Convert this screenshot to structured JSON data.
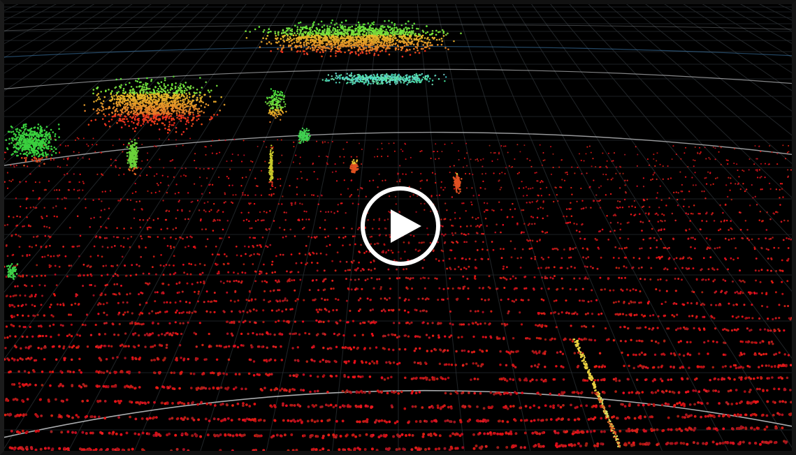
{
  "video": {
    "state": "paused",
    "content": "lidar-point-cloud"
  },
  "controls": {
    "play_icon": "play-circle-icon"
  },
  "colors": {
    "background": "#000000",
    "grid": "#2c3136",
    "range_ring": "#c8cacc",
    "ground": "#c8141a",
    "foliage_high": "#28d23c",
    "foliage_mid": "#d2d228",
    "foliage_low": "#e63c14",
    "cyan_band": "#32c8aa",
    "play_button": "#ffffff"
  }
}
